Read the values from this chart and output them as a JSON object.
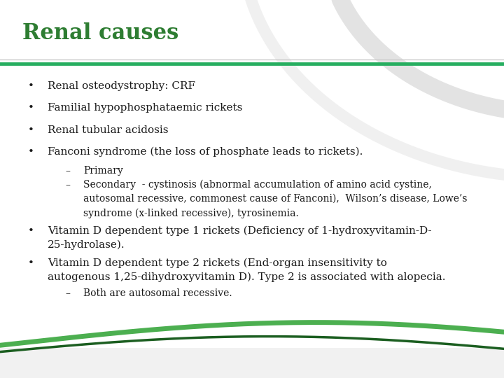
{
  "title": "Renal causes",
  "title_color": "#2e7d32",
  "title_fontsize": 22,
  "background_top": "#e8e8e8",
  "background_bottom": "#f5f5f5",
  "slide_bg": "#ffffff",
  "header_line_color1": "#cccccc",
  "header_line_color2": "#27ae60",
  "body_font_color": "#1a1a1a",
  "body_fontsize": 11,
  "sub_fontsize": 10,
  "bullet_items": [
    "Renal osteodystrophy: CRF",
    "Familial hypophosphataemic rickets",
    "Renal tubular acidosis",
    "Fanconi syndrome (the loss of phosphate leads to rickets)."
  ],
  "sub_item1": "Primary",
  "sub_item2": "Secondary  - cystinosis (abnormal accumulation of amino acid cystine,\nautosomal recessive, commonest cause of Fanconi),  Wilson’s disease, Lowe’s\nsyndrome (x-linked recessive), tyrosinemia.",
  "extra_bullet1_line1": "Vitamin D dependent type 1 rickets (Deficiency of 1-hydroxyvitamin-D-",
  "extra_bullet1_line2": "25-hydrolase).",
  "extra_bullet2_line1": "Vitamin D dependent type 2 rickets (End-organ insensitivity to",
  "extra_bullet2_line2": "autogenous 1,25-dihydroxyvitamin D). Type 2 is associated with alopecia.",
  "sub_extra": "Both are autosomal recessive.",
  "wave1_color": "#4caf50",
  "wave2_color": "#1b5e20"
}
